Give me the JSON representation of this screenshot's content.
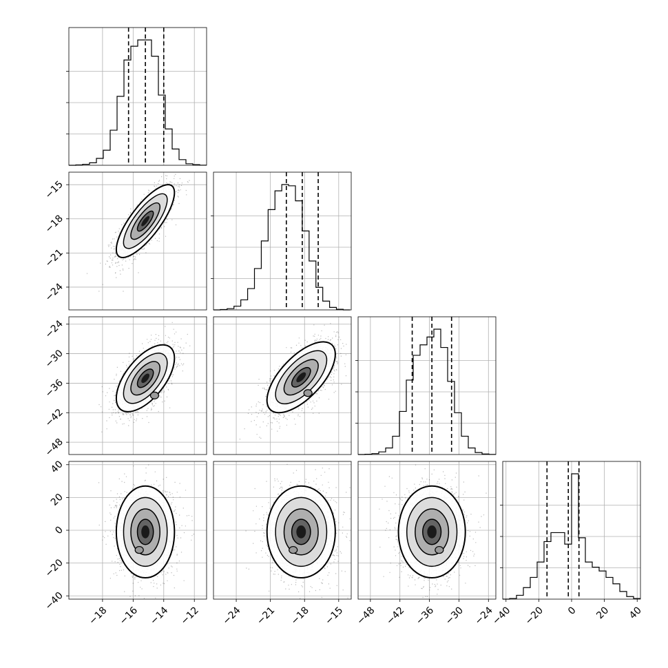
{
  "chart_data": {
    "type": "corner",
    "grid": true,
    "colors": {
      "ink": "#000000",
      "grid": "#b0b0b0",
      "background": "#ffffff"
    },
    "parameters": [
      {
        "range": [
          -20.2,
          -11.2
        ],
        "ticks": [
          -18,
          -16,
          -14,
          -12
        ],
        "quantiles": [
          -16.3,
          -15.2,
          -14.0
        ],
        "hist_bins": [
          -20.2,
          -19.75,
          -19.3,
          -18.85,
          -18.4,
          -17.95,
          -17.5,
          -17.05,
          -16.6,
          -16.15,
          -15.7,
          -15.25,
          -14.8,
          -14.35,
          -13.9,
          -13.45,
          -13.0,
          -12.55,
          -12.1,
          -11.65,
          -11.2
        ],
        "hist_counts": [
          0,
          3,
          8,
          20,
          55,
          120,
          280,
          550,
          840,
          950,
          1000,
          1000,
          870,
          560,
          290,
          130,
          45,
          12,
          5,
          1
        ]
      },
      {
        "range": [
          -26.0,
          -13.9
        ],
        "ticks": [
          -24,
          -21,
          -18,
          -15
        ],
        "quantiles": [
          -19.6,
          -18.2,
          -16.8
        ],
        "hist_bins": [
          -26.0,
          -25.4,
          -24.8,
          -24.2,
          -23.6,
          -23.0,
          -22.4,
          -21.8,
          -21.2,
          -20.6,
          -20.0,
          -19.4,
          -18.8,
          -18.2,
          -17.6,
          -17.0,
          -16.4,
          -15.8,
          -15.2,
          -14.6,
          -14.0
        ],
        "hist_counts": [
          0,
          3,
          10,
          30,
          80,
          170,
          330,
          550,
          800,
          950,
          1000,
          990,
          870,
          630,
          390,
          180,
          70,
          20,
          5,
          0
        ]
      },
      {
        "range": [
          -50.5,
          -22.5
        ],
        "ticks": [
          -48,
          -42,
          -36,
          -30,
          -24
        ],
        "quantiles": [
          -39.5,
          -35.5,
          -31.5
        ],
        "hist_bins": [
          -50.5,
          -49.1,
          -47.7,
          -46.3,
          -44.9,
          -43.5,
          -42.1,
          -40.7,
          -39.3,
          -37.9,
          -36.5,
          -35.1,
          -33.7,
          -32.3,
          -30.9,
          -29.5,
          -28.1,
          -26.7,
          -25.3,
          -23.9,
          -22.5
        ],
        "hist_counts": [
          0,
          2,
          7,
          20,
          50,
          140,
          330,
          570,
          760,
          840,
          900,
          960,
          820,
          560,
          320,
          140,
          50,
          15,
          4,
          1
        ]
      },
      {
        "range": [
          -42,
          42
        ],
        "ticks": [
          -40,
          -20,
          0,
          20,
          40
        ],
        "quantiles": [
          -15,
          -2,
          4.5
        ],
        "hist_bins": [
          -42,
          -37.8,
          -33.6,
          -29.4,
          -25.2,
          -21.0,
          -16.8,
          -12.6,
          -8.4,
          -4.2,
          0,
          4.2,
          8.4,
          12.6,
          16.8,
          21.0,
          25.2,
          29.4,
          33.6,
          37.8,
          42
        ],
        "hist_counts": [
          0,
          5,
          30,
          90,
          170,
          290,
          450,
          520,
          520,
          430,
          980,
          480,
          290,
          250,
          220,
          170,
          120,
          60,
          20,
          5
        ]
      }
    ],
    "pairs": [
      {
        "row": 1,
        "col": 0,
        "cx": -15.2,
        "cy": -18.2,
        "sx": 0.95,
        "sy": 1.6,
        "rho": 0.78,
        "extra": []
      },
      {
        "row": 2,
        "col": 0,
        "cx": -15.2,
        "cy": -35.0,
        "sx": 0.95,
        "sy": 3.4,
        "rho": 0.6,
        "extra": [
          {
            "x": -14.6,
            "y": -38.5
          }
        ]
      },
      {
        "row": 2,
        "col": 1,
        "cx": -18.3,
        "cy": -34.8,
        "sx": 1.5,
        "sy": 3.6,
        "rho": 0.65,
        "extra": [
          {
            "x": -17.7,
            "y": -38.0
          }
        ]
      },
      {
        "row": 3,
        "col": 0,
        "cx": -15.2,
        "cy": -1.0,
        "sx": 0.95,
        "sy": 14.0,
        "rho": 0.0,
        "extra": [
          {
            "x": -15.6,
            "y": -12.0
          }
        ]
      },
      {
        "row": 3,
        "col": 1,
        "cx": -18.3,
        "cy": -1.0,
        "sx": 1.5,
        "sy": 14.0,
        "rho": 0.0,
        "extra": [
          {
            "x": -19.0,
            "y": -12.0
          }
        ]
      },
      {
        "row": 3,
        "col": 2,
        "cx": -35.5,
        "cy": -1.0,
        "sx": 3.4,
        "sy": 14.0,
        "rho": 0.0,
        "extra": [
          {
            "x": -34.0,
            "y": -12.0
          }
        ]
      }
    ]
  }
}
